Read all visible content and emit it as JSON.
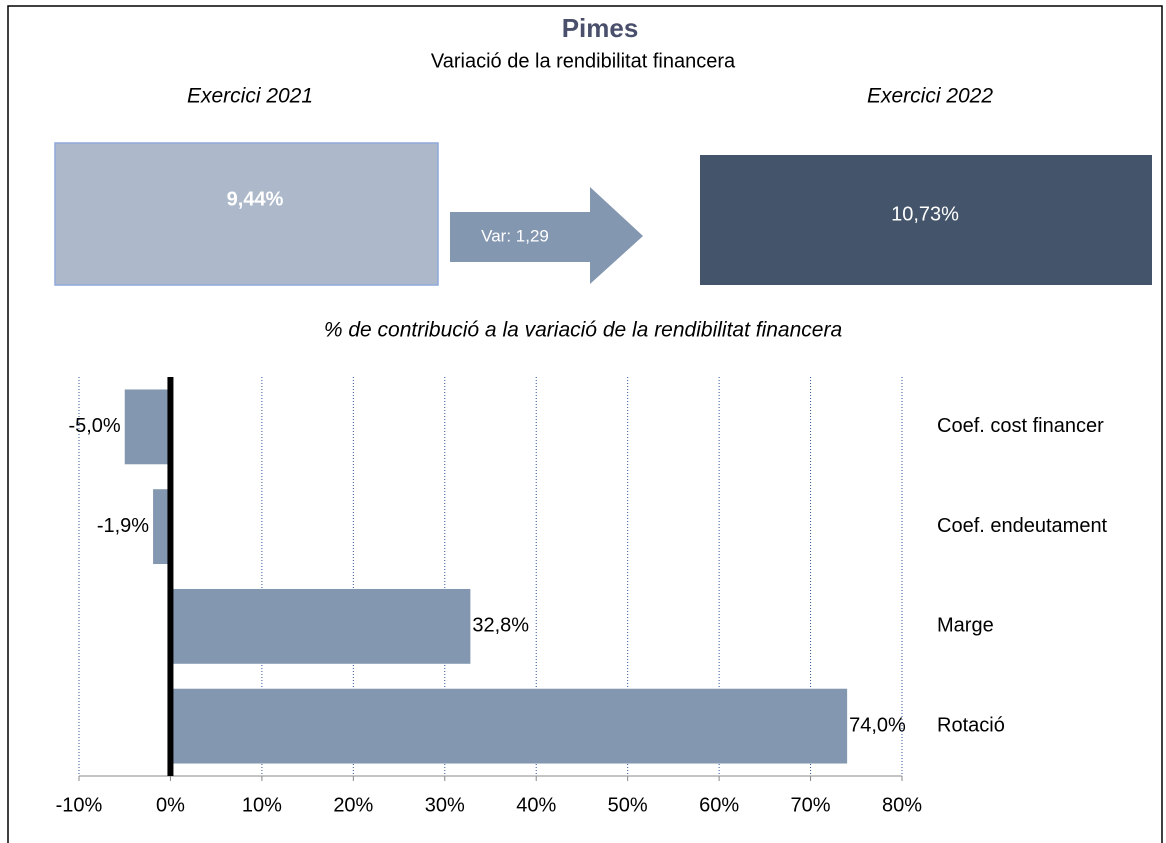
{
  "title": "Pimes",
  "subtitle": "Variació de la rendibilitat financera",
  "periods": [
    {
      "label": "Exercici 2021",
      "value": "9,44%",
      "color": "#adb9ca"
    },
    {
      "label": "Exercici 2022",
      "value": "10,73%",
      "color": "#44546a"
    }
  ],
  "variation": {
    "label": "Var: 1,29",
    "color": "#8497b0"
  },
  "chart_data": {
    "type": "bar",
    "orientation": "horizontal",
    "title": "% de contribució a la variació de la rendibilitat financera",
    "categories": [
      "Coef. cost financer",
      "Coef. endeutament",
      "Marge",
      "Rotació"
    ],
    "values": [
      -5.0,
      -1.9,
      32.8,
      74.0
    ],
    "value_labels": [
      "-5,0%",
      "-1,9%",
      "32,8%",
      "74,0%"
    ],
    "color": "#8497b0",
    "xlim": [
      -10,
      80
    ],
    "xticks": [
      {
        "value": -10,
        "label": "-10%"
      },
      {
        "value": 0,
        "label": "0%"
      },
      {
        "value": 10,
        "label": "10%"
      },
      {
        "value": 20,
        "label": "20%"
      },
      {
        "value": 30,
        "label": "30%"
      },
      {
        "value": 40,
        "label": "40%"
      },
      {
        "value": 50,
        "label": "50%"
      },
      {
        "value": 60,
        "label": "60%"
      },
      {
        "value": 70,
        "label": "70%"
      },
      {
        "value": 80,
        "label": "80%"
      }
    ],
    "grid": true
  }
}
